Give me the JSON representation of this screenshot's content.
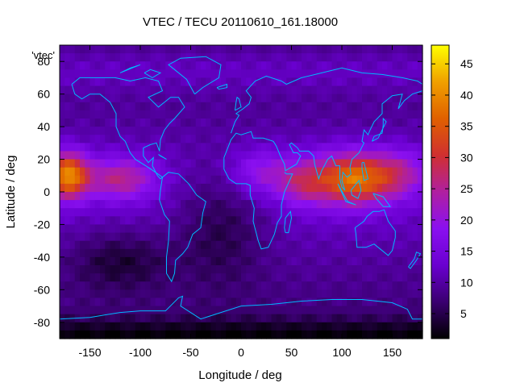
{
  "chart_data": {
    "type": "heatmap",
    "title": "VTEC / TECU 20110610_161.18000",
    "xlabel": "Longitude / deg",
    "ylabel": "Latitude / deg",
    "series_key_label": "'vtec'",
    "xlim": [
      -180,
      180
    ],
    "ylim": [
      -90,
      90
    ],
    "x_ticks": [
      -150,
      -100,
      -50,
      0,
      50,
      100,
      150
    ],
    "y_ticks": [
      -80,
      -60,
      -40,
      -20,
      0,
      20,
      40,
      60,
      80
    ],
    "colorbar": {
      "range": [
        1,
        48
      ],
      "ticks": [
        5,
        10,
        15,
        20,
        25,
        30,
        35,
        40,
        45
      ],
      "palette": [
        "#000000",
        "#3a0070",
        "#6a00d0",
        "#8a10f0",
        "#b020a0",
        "#d03030",
        "#e06000",
        "#f0a000",
        "#ffff00"
      ]
    },
    "grid": false,
    "features": {
      "equatorial_anomaly_crest_1": {
        "lon_range": [
          60,
          180
        ],
        "lat_range": [
          -15,
          25
        ],
        "peak_tecu": 48
      },
      "equatorial_anomaly_crest_2": {
        "lon_range": [
          -180,
          -130
        ],
        "lat_range": [
          -15,
          25
        ],
        "peak_tecu": 42
      },
      "night_low": {
        "lon_range": [
          -60,
          40
        ],
        "lat_range": [
          -90,
          20
        ],
        "min_tecu": 2
      }
    }
  }
}
